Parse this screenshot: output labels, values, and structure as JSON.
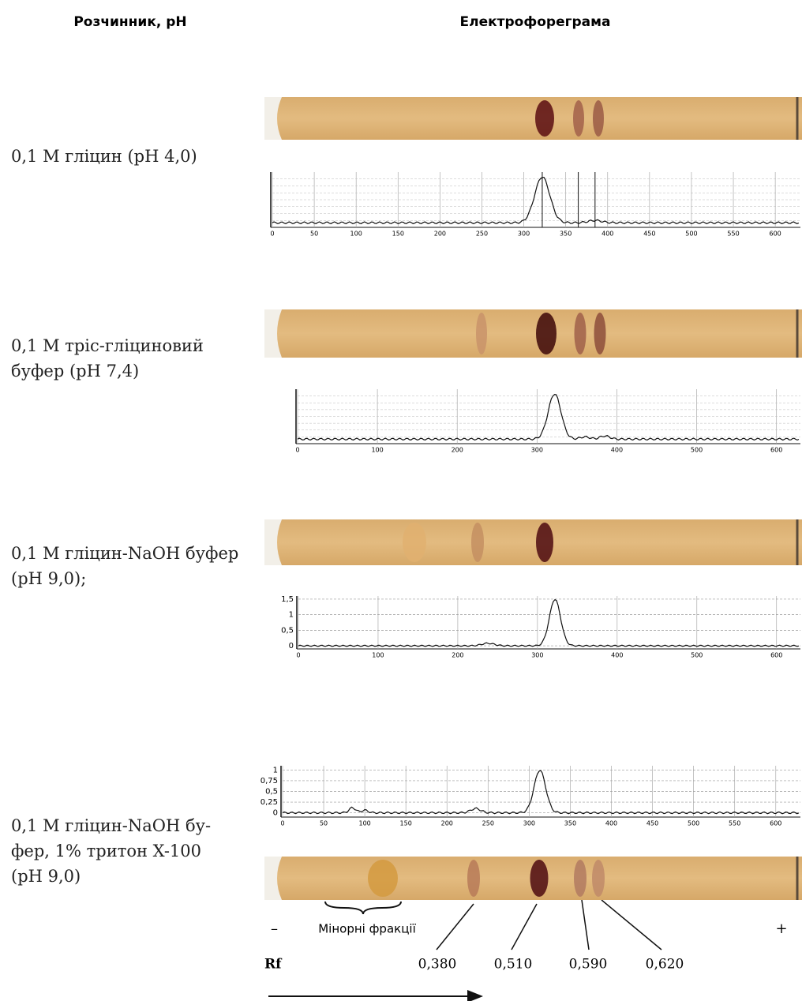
{
  "header": {
    "solvent": "Розчинник, pH",
    "electrophoregram": "Електрофореграма"
  },
  "rows": [
    {
      "solvent": [
        "0,1 M гліцин (pH 4,0)"
      ],
      "plot": {
        "xlim": [
          0,
          630
        ],
        "xticks": [
          0,
          50,
          100,
          150,
          200,
          250,
          300,
          350,
          400,
          450,
          500,
          550,
          600
        ]
      }
    },
    {
      "solvent": [
        "0,1 M тріс-гліциновий",
        "буфер (pH 7,4)"
      ],
      "plot": {
        "xlim": [
          0,
          630
        ],
        "xticks": [
          0,
          100,
          200,
          300,
          400,
          500,
          600
        ]
      }
    },
    {
      "solvent": [
        "0,1 M гліцин-NaOH буфер",
        "(pH 9,0);"
      ],
      "plot": {
        "xlim": [
          0,
          630
        ],
        "xticks": [
          0,
          100,
          200,
          300,
          400,
          500,
          600
        ],
        "ylim": [
          -0.1,
          1.6
        ],
        "yticks": [
          0,
          {
            "value": 0.5,
            "label": "0,5"
          },
          1,
          {
            "value": 1.5,
            "label": "1,5"
          }
        ]
      }
    },
    {
      "solvent": [
        "0,1 M гліцин-NaOH бу-",
        "фер, 1% тритон X-100",
        "(pH 9,0)"
      ],
      "plot": {
        "xlim": [
          0,
          630
        ],
        "xticks": [
          0,
          50,
          100,
          150,
          200,
          250,
          300,
          350,
          400,
          450,
          500,
          550,
          600
        ],
        "ylim": [
          -0.1,
          1.1
        ],
        "yticks": [
          0,
          {
            "value": 0.25,
            "label": "0,25"
          },
          {
            "value": 0.5,
            "label": "0,5"
          },
          {
            "value": 0.75,
            "label": "0,75"
          },
          1
        ]
      }
    }
  ],
  "legend": {
    "minus": "–",
    "minor": "Мінорні фракції",
    "plus": "+",
    "rf": "Rf",
    "rf_values": [
      "0,380",
      "0,510",
      "0,590",
      "0,620"
    ]
  }
}
